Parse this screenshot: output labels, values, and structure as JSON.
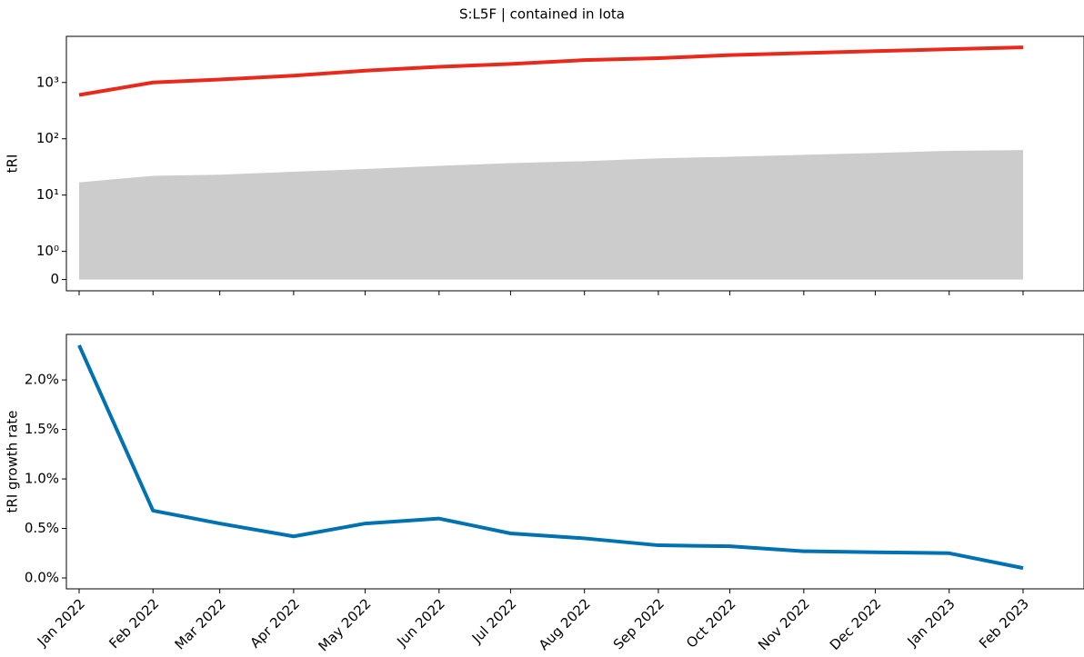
{
  "chart_data": [
    {
      "type": "line",
      "title": "S:L5F | contained in Iota",
      "ylabel": "tRI",
      "yscale": "symlog",
      "x": [
        "2022-01",
        "2022-02",
        "2022-03",
        "2022-04",
        "2022-05",
        "2022-06",
        "2022-07",
        "2022-08",
        "2022-09",
        "2022-10",
        "2022-11",
        "2022-12",
        "2023-01",
        "2023-02"
      ],
      "series": [
        {
          "kind": "area",
          "color": "#cccccc",
          "values": [
            16.8,
            22,
            23,
            26,
            29,
            33,
            37,
            40,
            45,
            48,
            52,
            56,
            61,
            63
          ]
        },
        {
          "kind": "line",
          "color": "#e8291c",
          "values": [
            600,
            1000,
            1130,
            1320,
            1620,
            1900,
            2130,
            2500,
            2700,
            3070,
            3330,
            3600,
            3900,
            4200
          ]
        }
      ],
      "ylim": [
        -0.4,
        6600
      ],
      "yticks": [
        0,
        {
          "value": 1,
          "label": "10⁰"
        },
        {
          "value": 10,
          "label": "10¹"
        },
        {
          "value": 100,
          "label": "10²"
        },
        {
          "value": 1000,
          "label": "10³"
        }
      ]
    },
    {
      "type": "line",
      "ylabel": "tRI growth rate",
      "x": [
        "2022-01",
        "2022-02",
        "2022-03",
        "2022-04",
        "2022-05",
        "2022-06",
        "2022-07",
        "2022-08",
        "2022-09",
        "2022-10",
        "2022-11",
        "2022-12",
        "2023-01",
        "2023-02"
      ],
      "series": [
        {
          "kind": "line",
          "color": "#0072b2",
          "values": [
            2.35,
            0.68,
            0.55,
            0.42,
            0.55,
            0.6,
            0.45,
            0.4,
            0.33,
            0.32,
            0.27,
            0.26,
            0.25,
            0.1
          ]
        }
      ],
      "ylim": [
        -0.11,
        2.46
      ],
      "yticks": [
        {
          "value": 0,
          "label": "0.0%"
        },
        {
          "value": 0.5,
          "label": "0.5%"
        },
        {
          "value": 1,
          "label": "1.0%"
        },
        {
          "value": 1.5,
          "label": "1.5%"
        },
        {
          "value": 2,
          "label": "2.0%"
        }
      ],
      "xticks": [
        {
          "value": "2022-01",
          "label": "Jan 2022"
        },
        {
          "value": "2022-02",
          "label": "Feb 2022"
        },
        {
          "value": "2022-03",
          "label": "Mar 2022"
        },
        {
          "value": "2022-04",
          "label": "Apr 2022"
        },
        {
          "value": "2022-05",
          "label": "May 2022"
        },
        {
          "value": "2022-06",
          "label": "Jun 2022"
        },
        {
          "value": "2022-07",
          "label": "Jul 2022"
        },
        {
          "value": "2022-08",
          "label": "Aug 2022"
        },
        {
          "value": "2022-09",
          "label": "Sep 2022"
        },
        {
          "value": "2022-10",
          "label": "Oct 2022"
        },
        {
          "value": "2022-11",
          "label": "Nov 2022"
        },
        {
          "value": "2022-12",
          "label": "Dec 2022"
        },
        {
          "value": "2023-01",
          "label": "Jan 2023"
        },
        {
          "value": "2023-02",
          "label": "Feb 2023"
        }
      ]
    }
  ]
}
